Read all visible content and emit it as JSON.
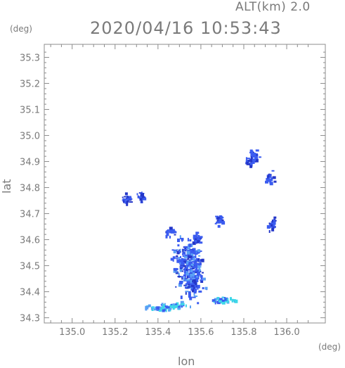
{
  "header": {
    "alt_label": "ALT(km) 2.0",
    "timestamp": "2020/04/16 10:53:43"
  },
  "axes": {
    "y_unit": "(deg)",
    "x_unit": "(deg)",
    "xlabel": "lon",
    "ylabel": "lat"
  },
  "colors": {
    "axis": "#8c8c8c",
    "grid": "#e2e2e2",
    "echo_main": "#3b5cf0",
    "echo_dark": "#2436c8",
    "echo_light": "#5aa0f5",
    "echo_cyan": "#3fd7e8"
  },
  "chart_data": {
    "type": "heatmap",
    "title": "",
    "xlabel": "lon",
    "ylabel": "lat",
    "xlim": [
      134.87,
      136.18
    ],
    "ylim": [
      34.28,
      35.35
    ],
    "xticks": [
      "135.0",
      "135.2",
      "135.4",
      "135.6",
      "135.8",
      "136.0"
    ],
    "yticks": [
      "34.3",
      "34.4",
      "34.5",
      "34.6",
      "34.7",
      "34.8",
      "34.9",
      "35.0",
      "35.1",
      "35.2",
      "35.3"
    ],
    "grid": false,
    "echoes": [
      {
        "lon": 135.55,
        "lat": 34.48,
        "intensity": "high"
      },
      {
        "lon": 135.53,
        "lat": 34.52,
        "intensity": "high"
      },
      {
        "lon": 135.58,
        "lat": 34.61,
        "intensity": "moderate"
      },
      {
        "lon": 135.56,
        "lat": 34.42,
        "intensity": "moderate"
      },
      {
        "lon": 135.4,
        "lat": 34.34,
        "intensity": "light"
      },
      {
        "lon": 135.47,
        "lat": 34.35,
        "intensity": "light"
      },
      {
        "lon": 135.25,
        "lat": 34.76,
        "intensity": "moderate"
      },
      {
        "lon": 135.32,
        "lat": 34.77,
        "intensity": "moderate"
      },
      {
        "lon": 135.82,
        "lat": 34.9,
        "intensity": "moderate"
      },
      {
        "lon": 135.84,
        "lat": 34.93,
        "intensity": "moderate"
      },
      {
        "lon": 135.92,
        "lat": 34.84,
        "intensity": "moderate"
      },
      {
        "lon": 135.93,
        "lat": 34.66,
        "intensity": "moderate"
      },
      {
        "lon": 135.68,
        "lat": 34.68,
        "intensity": "moderate"
      },
      {
        "lon": 135.45,
        "lat": 34.64,
        "intensity": "moderate"
      },
      {
        "lon": 135.7,
        "lat": 34.37,
        "intensity": "light"
      }
    ]
  }
}
